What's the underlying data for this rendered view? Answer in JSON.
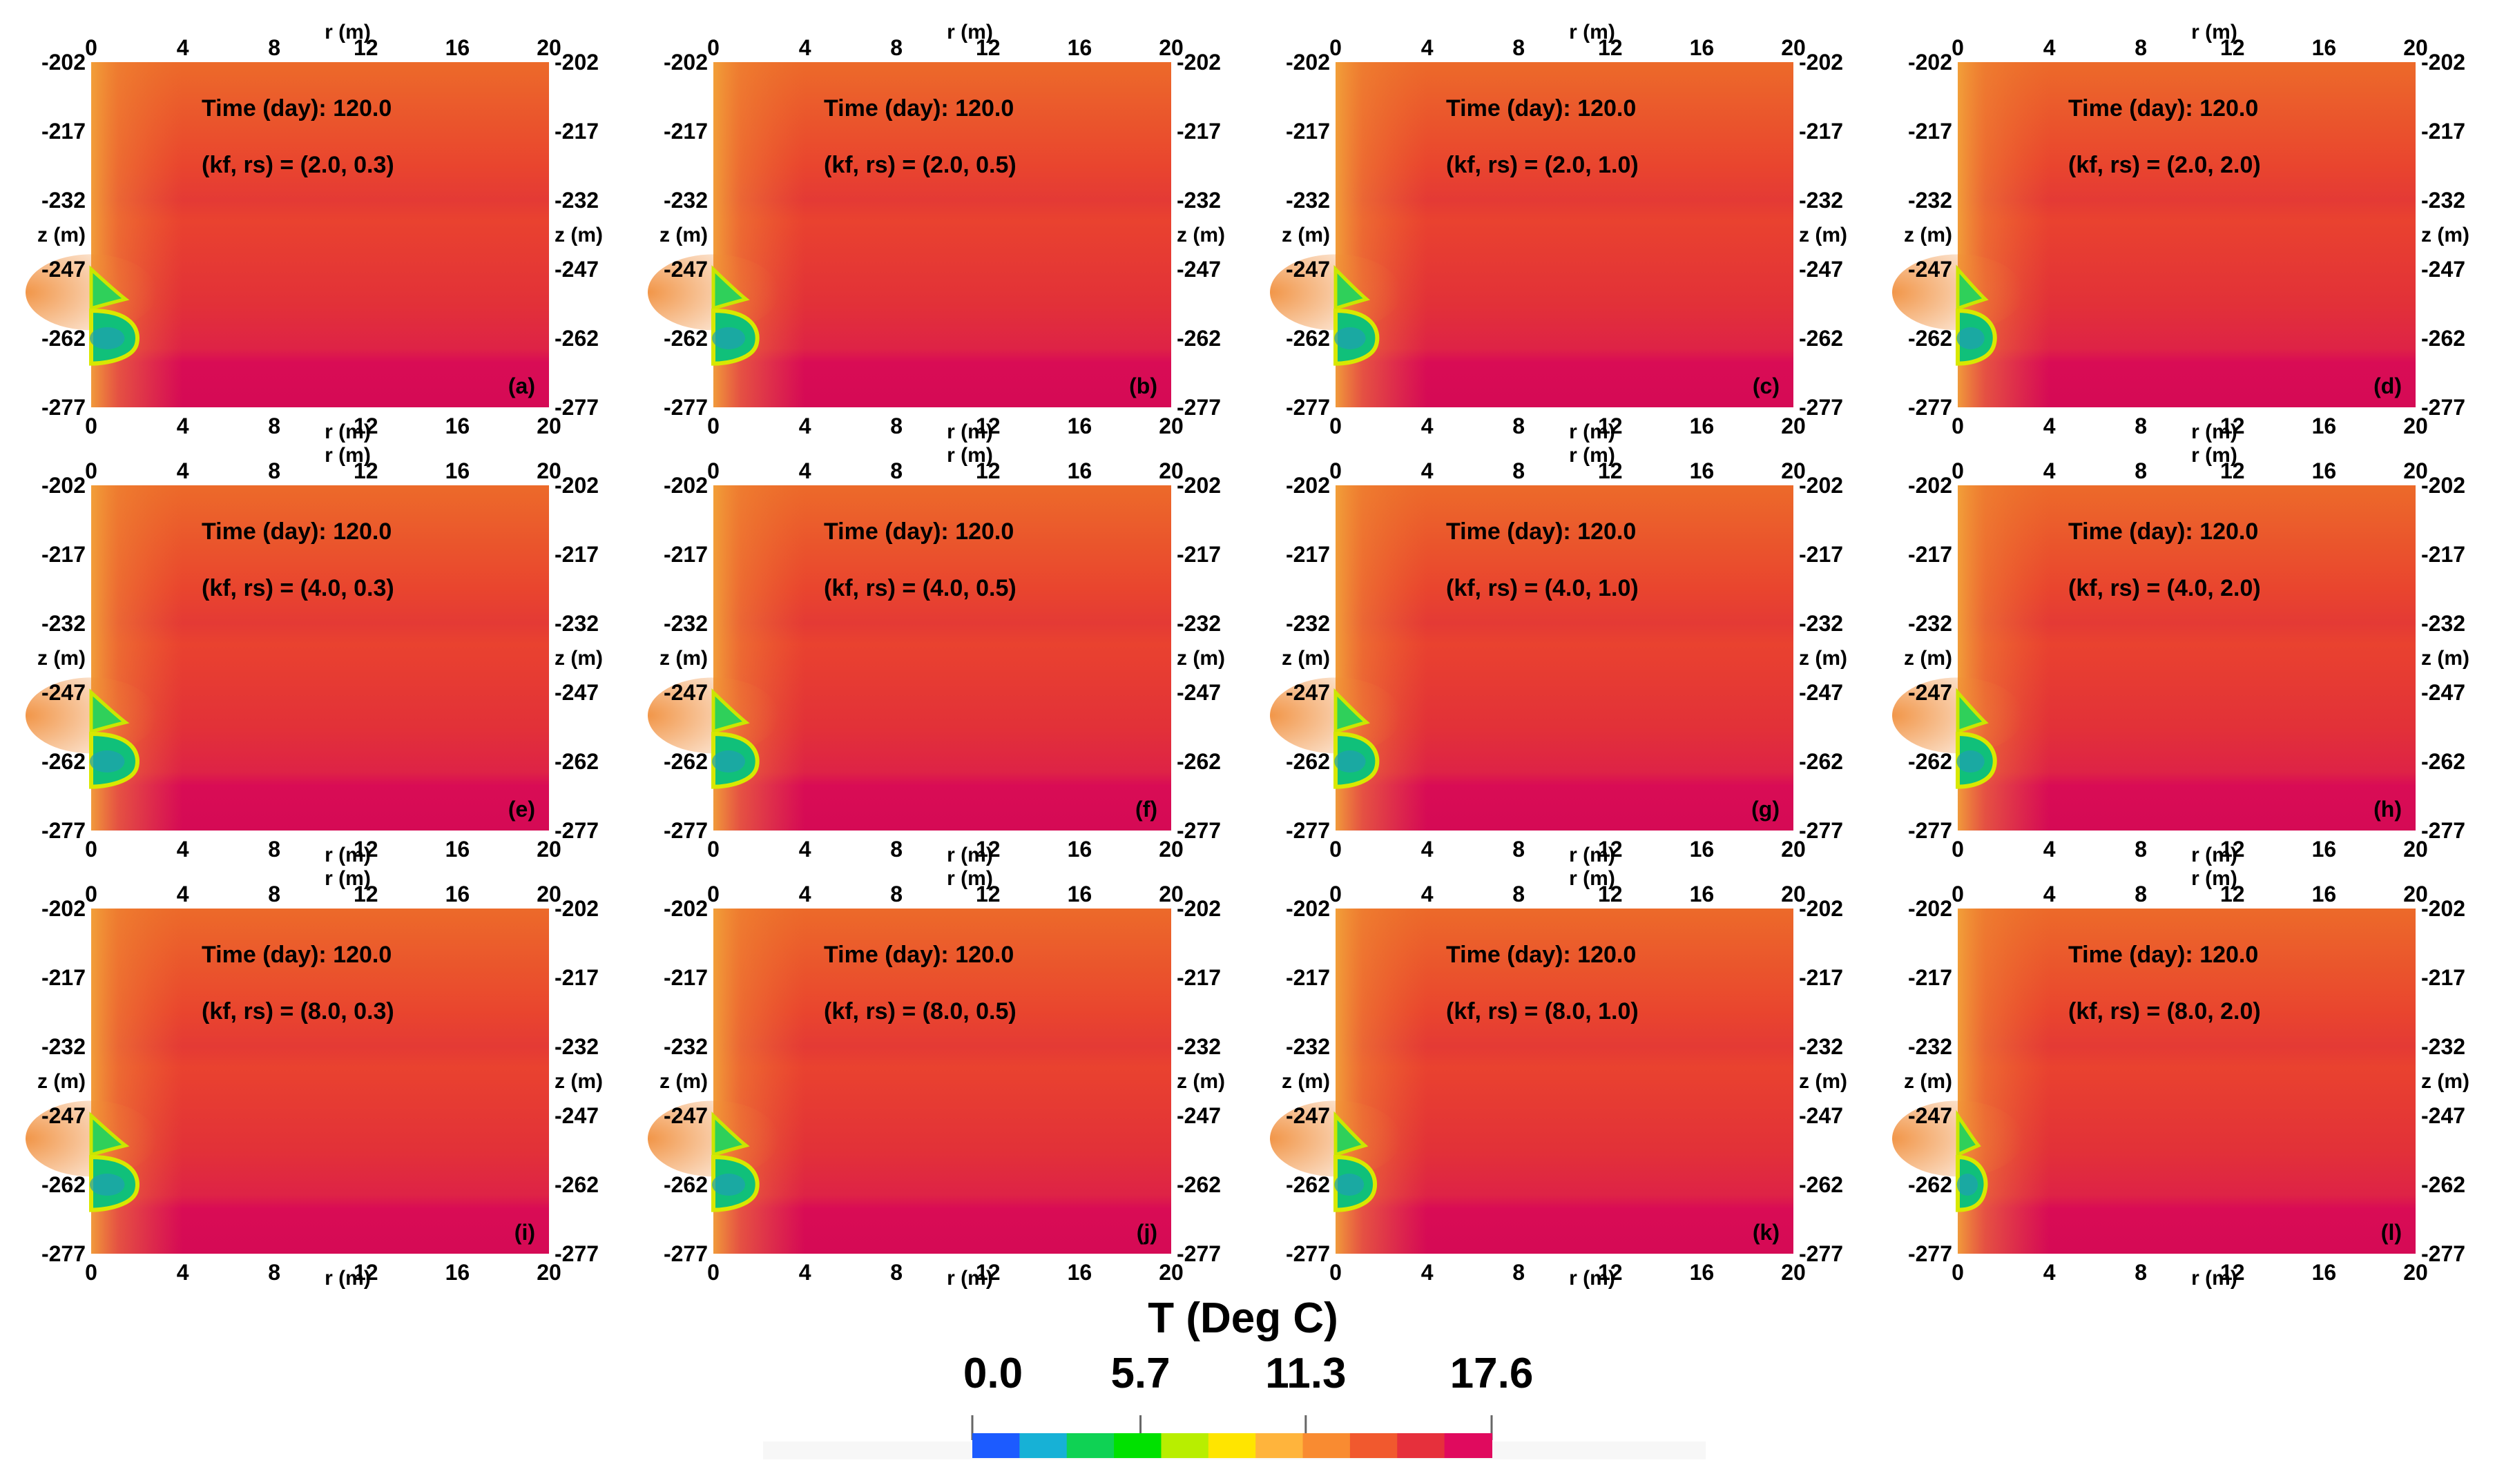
{
  "figure": {
    "colorbar": {
      "title": "T (Deg C)",
      "tick_labels": [
        "0.0",
        "5.7",
        "11.3",
        "17.6"
      ],
      "tick_values": [
        0.0,
        5.7,
        11.3,
        17.6
      ],
      "range": [
        0.0,
        17.6
      ],
      "colormap": [
        "#1c5bff",
        "#17b1d6",
        "#0fd254",
        "#00e100",
        "#b8ee00",
        "#ffe500",
        "#ffb43c",
        "#f98b31",
        "#f1592e",
        "#e6303c",
        "#e00a5e"
      ]
    }
  },
  "chart_data": [
    {
      "panel": "(a)",
      "type": "heatmap",
      "time_label": "Time (day):  120.0",
      "params_label": "(kf, rs) = (2.0, 0.3)",
      "kf": 2.0,
      "rs": 0.3,
      "time_day": 120.0,
      "xlabel": "r (m)",
      "ylabel": "z (m)",
      "xlim": [
        0,
        20
      ],
      "ylim": [
        -277,
        -202
      ],
      "xticks": [
        "0",
        "4",
        "8",
        "12",
        "16",
        "20"
      ],
      "yticks": [
        "-202",
        "-217",
        "-232",
        "-247",
        "-262",
        "-277"
      ],
      "cold_zone_extent_m": 2.0
    },
    {
      "panel": "(b)",
      "type": "heatmap",
      "time_label": "Time (day):  120.0",
      "params_label": "(kf, rs) = (2.0, 0.5)",
      "kf": 2.0,
      "rs": 0.5,
      "time_day": 120.0,
      "xlabel": "r (m)",
      "ylabel": "z (m)",
      "xlim": [
        0,
        20
      ],
      "ylim": [
        -277,
        -202
      ],
      "xticks": [
        "0",
        "4",
        "8",
        "12",
        "16",
        "20"
      ],
      "yticks": [
        "-202",
        "-217",
        "-232",
        "-247",
        "-262",
        "-277"
      ],
      "cold_zone_extent_m": 1.9
    },
    {
      "panel": "(c)",
      "type": "heatmap",
      "time_label": "Time (day):  120.0",
      "params_label": "(kf, rs) = (2.0, 1.0)",
      "kf": 2.0,
      "rs": 1.0,
      "time_day": 120.0,
      "xlabel": "r (m)",
      "ylabel": "z (m)",
      "xlim": [
        0,
        20
      ],
      "ylim": [
        -277,
        -202
      ],
      "xticks": [
        "0",
        "4",
        "8",
        "12",
        "16",
        "20"
      ],
      "yticks": [
        "-202",
        "-217",
        "-232",
        "-247",
        "-262",
        "-277"
      ],
      "cold_zone_extent_m": 1.8
    },
    {
      "panel": "(d)",
      "type": "heatmap",
      "time_label": "Time (day):  120.0",
      "params_label": "(kf, rs) = (2.0, 2.0)",
      "kf": 2.0,
      "rs": 2.0,
      "time_day": 120.0,
      "xlabel": "r (m)",
      "ylabel": "z (m)",
      "xlim": [
        0,
        20
      ],
      "ylim": [
        -277,
        -202
      ],
      "xticks": [
        "0",
        "4",
        "8",
        "12",
        "16",
        "20"
      ],
      "yticks": [
        "-202",
        "-217",
        "-232",
        "-247",
        "-262",
        "-277"
      ],
      "cold_zone_extent_m": 1.6
    },
    {
      "panel": "(e)",
      "type": "heatmap",
      "time_label": "Time (day):  120.0",
      "params_label": "(kf, rs) = (4.0, 0.3)",
      "kf": 4.0,
      "rs": 0.3,
      "time_day": 120.0,
      "xlabel": "r (m)",
      "ylabel": "z (m)",
      "xlim": [
        0,
        20
      ],
      "ylim": [
        -277,
        -202
      ],
      "xticks": [
        "0",
        "4",
        "8",
        "12",
        "16",
        "20"
      ],
      "yticks": [
        "-202",
        "-217",
        "-232",
        "-247",
        "-262",
        "-277"
      ],
      "cold_zone_extent_m": 2.0
    },
    {
      "panel": "(f)",
      "type": "heatmap",
      "time_label": "Time (day):  120.0",
      "params_label": "(kf, rs) = (4.0, 0.5)",
      "kf": 4.0,
      "rs": 0.5,
      "time_day": 120.0,
      "xlabel": "r (m)",
      "ylabel": "z (m)",
      "xlim": [
        0,
        20
      ],
      "ylim": [
        -277,
        -202
      ],
      "xticks": [
        "0",
        "4",
        "8",
        "12",
        "16",
        "20"
      ],
      "yticks": [
        "-202",
        "-217",
        "-232",
        "-247",
        "-262",
        "-277"
      ],
      "cold_zone_extent_m": 1.9
    },
    {
      "panel": "(g)",
      "type": "heatmap",
      "time_label": "Time (day):  120.0",
      "params_label": "(kf, rs) = (4.0, 1.0)",
      "kf": 4.0,
      "rs": 1.0,
      "time_day": 120.0,
      "xlabel": "r (m)",
      "ylabel": "z (m)",
      "xlim": [
        0,
        20
      ],
      "ylim": [
        -277,
        -202
      ],
      "xticks": [
        "0",
        "4",
        "8",
        "12",
        "16",
        "20"
      ],
      "yticks": [
        "-202",
        "-217",
        "-232",
        "-247",
        "-262",
        "-277"
      ],
      "cold_zone_extent_m": 1.8
    },
    {
      "panel": "(h)",
      "type": "heatmap",
      "time_label": "Time (day):  120.0",
      "params_label": "(kf, rs) = (4.0, 2.0)",
      "kf": 4.0,
      "rs": 2.0,
      "time_day": 120.0,
      "xlabel": "r (m)",
      "ylabel": "z (m)",
      "xlim": [
        0,
        20
      ],
      "ylim": [
        -277,
        -202
      ],
      "xticks": [
        "0",
        "4",
        "8",
        "12",
        "16",
        "20"
      ],
      "yticks": [
        "-202",
        "-217",
        "-232",
        "-247",
        "-262",
        "-277"
      ],
      "cold_zone_extent_m": 1.6
    },
    {
      "panel": "(i)",
      "type": "heatmap",
      "time_label": "Time (day):  120.0",
      "params_label": "(kf, rs) = (8.0, 0.3)",
      "kf": 8.0,
      "rs": 0.3,
      "time_day": 120.0,
      "xlabel": "r (m)",
      "ylabel": "z (m)",
      "xlim": [
        0,
        20
      ],
      "ylim": [
        -277,
        -202
      ],
      "xticks": [
        "0",
        "4",
        "8",
        "12",
        "16",
        "20"
      ],
      "yticks": [
        "-202",
        "-217",
        "-232",
        "-247",
        "-262",
        "-277"
      ],
      "cold_zone_extent_m": 2.0
    },
    {
      "panel": "(j)",
      "type": "heatmap",
      "time_label": "Time (day):  120.0",
      "params_label": "(kf, rs) = (8.0, 0.5)",
      "kf": 8.0,
      "rs": 0.5,
      "time_day": 120.0,
      "xlabel": "r (m)",
      "ylabel": "z (m)",
      "xlim": [
        0,
        20
      ],
      "ylim": [
        -277,
        -202
      ],
      "xticks": [
        "0",
        "4",
        "8",
        "12",
        "16",
        "20"
      ],
      "yticks": [
        "-202",
        "-217",
        "-232",
        "-247",
        "-262",
        "-277"
      ],
      "cold_zone_extent_m": 1.9
    },
    {
      "panel": "(k)",
      "type": "heatmap",
      "time_label": "Time (day):  120.0",
      "params_label": "(kf, rs) = (8.0, 1.0)",
      "kf": 8.0,
      "rs": 1.0,
      "time_day": 120.0,
      "xlabel": "r (m)",
      "ylabel": "z (m)",
      "xlim": [
        0,
        20
      ],
      "ylim": [
        -277,
        -202
      ],
      "xticks": [
        "0",
        "4",
        "8",
        "12",
        "16",
        "20"
      ],
      "yticks": [
        "-202",
        "-217",
        "-232",
        "-247",
        "-262",
        "-277"
      ],
      "cold_zone_extent_m": 1.7
    },
    {
      "panel": "(l)",
      "type": "heatmap",
      "time_label": "Time (day):  120.0",
      "params_label": "(kf, rs) = (8.0, 2.0)",
      "kf": 8.0,
      "rs": 2.0,
      "time_day": 120.0,
      "xlabel": "r (m)",
      "ylabel": "z (m)",
      "xlim": [
        0,
        20
      ],
      "ylim": [
        -277,
        -202
      ],
      "xticks": [
        "0",
        "4",
        "8",
        "12",
        "16",
        "20"
      ],
      "yticks": [
        "-202",
        "-217",
        "-232",
        "-247",
        "-262",
        "-277"
      ],
      "cold_zone_extent_m": 1.2
    }
  ]
}
